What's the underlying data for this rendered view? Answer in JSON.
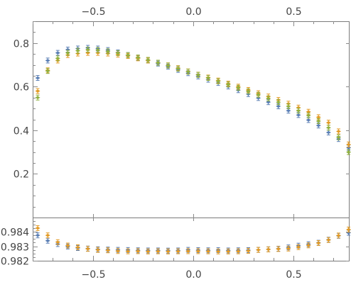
{
  "chart_data": [
    {
      "type": "scatter",
      "panel": "top",
      "xlim": [
        -0.8,
        0.78
      ],
      "ylim": [
        0.0,
        0.9
      ],
      "x_ticks": [
        -0.5,
        0.0,
        0.5
      ],
      "x_tick_labels": [
        "−0.5",
        "0.0",
        "0.5"
      ],
      "y_ticks": [
        0.2,
        0.4,
        0.6,
        0.8
      ],
      "y_tick_labels": [
        "0.2",
        "0.4",
        "0.6",
        "0.8"
      ],
      "x_tick_position": "top",
      "grid": false,
      "error_bars": true,
      "series": [
        {
          "color": "#5b7fb5",
          "marker": "diamond",
          "x": [
            -0.775,
            -0.725,
            -0.675,
            -0.625,
            -0.575,
            -0.525,
            -0.475,
            -0.425,
            -0.375,
            -0.325,
            -0.275,
            -0.225,
            -0.175,
            -0.125,
            -0.075,
            -0.025,
            0.025,
            0.075,
            0.125,
            0.175,
            0.225,
            0.275,
            0.325,
            0.375,
            0.425,
            0.475,
            0.525,
            0.575,
            0.625,
            0.675,
            0.725,
            0.775
          ],
          "y": [
            0.64,
            0.72,
            0.755,
            0.77,
            0.775,
            0.778,
            0.775,
            0.768,
            0.757,
            0.745,
            0.732,
            0.72,
            0.706,
            0.692,
            0.677,
            0.662,
            0.647,
            0.632,
            0.617,
            0.601,
            0.584,
            0.566,
            0.548,
            0.529,
            0.51,
            0.49,
            0.47,
            0.447,
            0.422,
            0.39,
            0.36,
            0.32
          ]
        },
        {
          "color": "#e39b25",
          "marker": "diamond",
          "x": [
            -0.775,
            -0.725,
            -0.675,
            -0.625,
            -0.575,
            -0.525,
            -0.475,
            -0.425,
            -0.375,
            -0.325,
            -0.275,
            -0.225,
            -0.175,
            -0.125,
            -0.075,
            -0.025,
            0.025,
            0.075,
            0.125,
            0.175,
            0.225,
            0.275,
            0.325,
            0.375,
            0.425,
            0.475,
            0.525,
            0.575,
            0.625,
            0.675,
            0.725,
            0.775
          ],
          "y": [
            0.58,
            0.675,
            0.72,
            0.745,
            0.752,
            0.755,
            0.755,
            0.752,
            0.747,
            0.741,
            0.73,
            0.72,
            0.71,
            0.698,
            0.685,
            0.67,
            0.655,
            0.642,
            0.628,
            0.614,
            0.6,
            0.585,
            0.57,
            0.555,
            0.539,
            0.522,
            0.504,
            0.485,
            0.46,
            0.435,
            0.395,
            0.335
          ]
        },
        {
          "color": "#8fb03e",
          "marker": "diamond",
          "x": [
            -0.775,
            -0.725,
            -0.675,
            -0.625,
            -0.575,
            -0.525,
            -0.475,
            -0.425,
            -0.375,
            -0.325,
            -0.275,
            -0.225,
            -0.175,
            -0.125,
            -0.075,
            -0.025,
            0.025,
            0.075,
            0.125,
            0.175,
            0.225,
            0.275,
            0.325,
            0.375,
            0.425,
            0.475,
            0.525,
            0.575,
            0.625,
            0.675,
            0.725,
            0.775
          ],
          "y": [
            0.55,
            0.672,
            0.73,
            0.755,
            0.765,
            0.77,
            0.768,
            0.762,
            0.754,
            0.745,
            0.734,
            0.723,
            0.71,
            0.697,
            0.683,
            0.669,
            0.654,
            0.64,
            0.625,
            0.61,
            0.595,
            0.579,
            0.563,
            0.546,
            0.529,
            0.51,
            0.49,
            0.468,
            0.442,
            0.412,
            0.368,
            0.3
          ]
        }
      ]
    },
    {
      "type": "scatter",
      "panel": "bottom",
      "xlim": [
        -0.8,
        0.78
      ],
      "ylim": [
        0.982,
        0.98498
      ],
      "x_ticks": [
        -0.5,
        0.0,
        0.5
      ],
      "x_tick_labels": [
        "−0.5",
        "0.0",
        "0.5"
      ],
      "y_ticks": [
        0.982,
        0.983,
        0.984
      ],
      "y_tick_labels": [
        "0.982",
        "0.983",
        "0.984"
      ],
      "x_tick_position": "bottom",
      "grid": false,
      "error_bars": true,
      "series": [
        {
          "color": "#5b7fb5",
          "marker": "diamond",
          "x": [
            -0.775,
            -0.725,
            -0.675,
            -0.625,
            -0.575,
            -0.525,
            -0.475,
            -0.425,
            -0.375,
            -0.325,
            -0.275,
            -0.225,
            -0.175,
            -0.125,
            -0.075,
            -0.025,
            0.025,
            0.075,
            0.125,
            0.175,
            0.225,
            0.275,
            0.325,
            0.375,
            0.425,
            0.475,
            0.525,
            0.575,
            0.625,
            0.675,
            0.725,
            0.775
          ],
          "y": [
            0.98375,
            0.98338,
            0.98315,
            0.98298,
            0.98288,
            0.98284,
            0.98279,
            0.98277,
            0.98275,
            0.98274,
            0.98272,
            0.98271,
            0.98271,
            0.9827,
            0.98271,
            0.98275,
            0.98273,
            0.98272,
            0.98273,
            0.98271,
            0.98272,
            0.98273,
            0.98275,
            0.98279,
            0.98283,
            0.98292,
            0.98304,
            0.98314,
            0.98324,
            0.98345,
            0.98372,
            0.98393
          ]
        },
        {
          "color": "#e39b25",
          "marker": "diamond",
          "x": [
            -0.775,
            -0.725,
            -0.675,
            -0.625,
            -0.575,
            -0.525,
            -0.475,
            -0.425,
            -0.375,
            -0.325,
            -0.275,
            -0.225,
            -0.175,
            -0.125,
            -0.075,
            -0.025,
            0.025,
            0.075,
            0.125,
            0.175,
            0.225,
            0.275,
            0.325,
            0.375,
            0.425,
            0.475,
            0.525,
            0.575,
            0.625,
            0.675,
            0.725,
            0.775
          ],
          "y": [
            0.98425,
            0.98375,
            0.98328,
            0.98305,
            0.98293,
            0.98282,
            0.98275,
            0.98272,
            0.98267,
            0.98265,
            0.98266,
            0.98264,
            0.98265,
            0.98264,
            0.98265,
            0.98266,
            0.98266,
            0.98265,
            0.98264,
            0.98264,
            0.98265,
            0.98268,
            0.98275,
            0.98278,
            0.98281,
            0.98284,
            0.98294,
            0.98306,
            0.98322,
            0.98343,
            0.98374,
            0.98415
          ]
        }
      ]
    }
  ]
}
